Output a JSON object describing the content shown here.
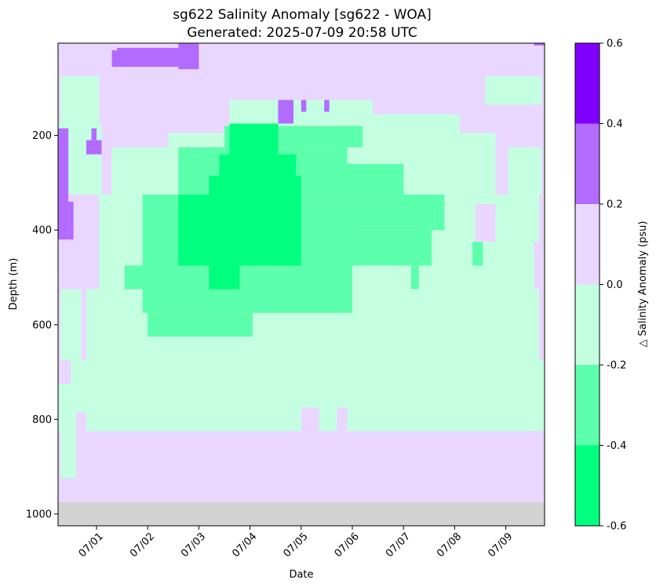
{
  "chart_data": {
    "type": "heatmap",
    "title": "sg622 Salinity Anomaly [sg622 - WOA]",
    "subtitle": "Generated: 2025-07-09 20:58 UTC",
    "xlabel": "Date",
    "ylabel": "Depth (m)",
    "colorbar_label": "△ Salinity Anomaly (psu)",
    "x_ticks": [
      "07/01",
      "07/02",
      "07/03",
      "07/04",
      "07/05",
      "07/06",
      "07/07",
      "07/08",
      "07/09"
    ],
    "x_range_days": [
      -0.75,
      8.75
    ],
    "y_ticks": [
      200,
      400,
      600,
      800,
      1000
    ],
    "ylim": [
      1025,
      0
    ],
    "ylim_top_visible": 5,
    "no_data_below_depth": 975,
    "levels": [
      -0.6,
      -0.4,
      -0.2,
      0.0,
      0.2,
      0.4,
      0.6
    ],
    "colorbar_ticks": [
      "-0.6",
      "-0.4",
      "-0.2",
      "0.0",
      "0.2",
      "0.4",
      "0.6"
    ],
    "band_colors": [
      "#00ff7f",
      "#5cffab",
      "#c5ffe2",
      "#ead7ff",
      "#b36bff",
      "#8000ff"
    ],
    "background_color": "#ead7ff",
    "nodata_color": "#d3d3d3",
    "regions": [
      {
        "level": 2,
        "days": [
          -0.75,
          8.75
        ],
        "depth": [
          675,
          825
        ]
      },
      {
        "level": 2,
        "days": [
          -0.7,
          -0.3
        ],
        "depth": [
          525,
          925
        ]
      },
      {
        "level": 2,
        "days": [
          -0.2,
          8.65
        ],
        "depth": [
          325,
          675
        ]
      },
      {
        "level": 2,
        "days": [
          -0.7,
          0.05
        ],
        "depth": [
          75,
          175
        ]
      },
      {
        "level": 2,
        "days": [
          0.3,
          4.0
        ],
        "depth": [
          225,
          325
        ]
      },
      {
        "level": 2,
        "days": [
          1.4,
          7.8
        ],
        "depth": [
          195,
          325
        ]
      },
      {
        "level": 2,
        "days": [
          2.6,
          5.4
        ],
        "depth": [
          125,
          200
        ]
      },
      {
        "level": 2,
        "days": [
          4.75,
          7.1
        ],
        "depth": [
          155,
          200
        ]
      },
      {
        "level": 2,
        "days": [
          7.6,
          8.7
        ],
        "depth": [
          75,
          135
        ]
      },
      {
        "level": 2,
        "days": [
          8.05,
          8.7
        ],
        "depth": [
          225,
          325
        ]
      },
      {
        "level": 2,
        "days": [
          -0.75,
          0.1
        ],
        "depth": [
          175,
          325
        ]
      },
      {
        "level": 3,
        "days": [
          -0.75,
          -0.5
        ],
        "depth": [
          675,
          725
        ]
      },
      {
        "level": 3,
        "days": [
          -0.2,
          0.05
        ],
        "depth": [
          325,
          525
        ]
      },
      {
        "level": 3,
        "days": [
          7.4,
          7.8
        ],
        "depth": [
          345,
          425
        ]
      },
      {
        "level": 3,
        "days": [
          8.55,
          8.75
        ],
        "depth": [
          425,
          525
        ]
      },
      {
        "level": 3,
        "days": [
          -0.4,
          -0.2
        ],
        "depth": [
          785,
          875
        ]
      },
      {
        "level": 3,
        "days": [
          0.0,
          8.75
        ],
        "depth": [
          825,
          975
        ]
      },
      {
        "level": 3,
        "days": [
          -0.4,
          0.0
        ],
        "depth": [
          875,
          975
        ]
      },
      {
        "level": 3,
        "days": [
          -0.75,
          -0.45
        ],
        "depth": [
          925,
          975
        ]
      },
      {
        "level": 3,
        "days": [
          4.0,
          4.2
        ],
        "depth": [
          775,
          825
        ]
      },
      {
        "level": 3,
        "days": [
          4.2,
          4.35
        ],
        "depth": [
          775,
          825
        ]
      },
      {
        "level": 3,
        "days": [
          4.7,
          4.9
        ],
        "depth": [
          775,
          825
        ]
      },
      {
        "level": 3,
        "days": [
          8.5,
          8.75
        ],
        "depth": [
          825,
          875
        ]
      },
      {
        "level": 1,
        "days": [
          0.9,
          5.0
        ],
        "depth": [
          325,
          575
        ]
      },
      {
        "level": 1,
        "days": [
          1.0,
          3.05
        ],
        "depth": [
          575,
          625
        ]
      },
      {
        "level": 1,
        "days": [
          1.6,
          4.9
        ],
        "depth": [
          225,
          325
        ]
      },
      {
        "level": 1,
        "days": [
          2.5,
          5.2
        ],
        "depth": [
          180,
          225
        ]
      },
      {
        "level": 1,
        "days": [
          4.9,
          6.0
        ],
        "depth": [
          260,
          325
        ]
      },
      {
        "level": 1,
        "days": [
          4.9,
          6.8
        ],
        "depth": [
          325,
          400
        ]
      },
      {
        "level": 1,
        "days": [
          4.9,
          6.55
        ],
        "depth": [
          400,
          475
        ]
      },
      {
        "level": 1,
        "days": [
          0.55,
          4.9
        ],
        "depth": [
          475,
          525
        ]
      },
      {
        "level": 1,
        "days": [
          6.15,
          6.3
        ],
        "depth": [
          475,
          525
        ]
      },
      {
        "level": 1,
        "days": [
          7.35,
          7.55
        ],
        "depth": [
          425,
          475
        ]
      },
      {
        "level": 0,
        "days": [
          1.6,
          4.0
        ],
        "depth": [
          325,
          475
        ]
      },
      {
        "level": 0,
        "days": [
          2.2,
          4.0
        ],
        "depth": [
          285,
          325
        ]
      },
      {
        "level": 0,
        "days": [
          2.4,
          3.9
        ],
        "depth": [
          240,
          285
        ]
      },
      {
        "level": 0,
        "days": [
          2.6,
          3.55
        ],
        "depth": [
          175,
          240
        ]
      },
      {
        "level": 0,
        "days": [
          2.2,
          2.8
        ],
        "depth": [
          475,
          525
        ]
      },
      {
        "level": 4,
        "days": [
          0.4,
          1.7
        ],
        "depth": [
          15,
          55
        ]
      },
      {
        "level": 4,
        "days": [
          1.6,
          2.0
        ],
        "depth": [
          5,
          60
        ]
      },
      {
        "level": 4,
        "days": [
          -0.75,
          -0.55
        ],
        "depth": [
          185,
          420
        ]
      },
      {
        "level": 4,
        "days": [
          -0.55,
          -0.45
        ],
        "depth": [
          340,
          420
        ]
      },
      {
        "level": 4,
        "days": [
          -0.2,
          0.1
        ],
        "depth": [
          210,
          240
        ]
      },
      {
        "level": 4,
        "days": [
          0.3,
          0.6
        ],
        "depth": [
          20,
          55
        ]
      },
      {
        "level": 4,
        "days": [
          3.55,
          3.85
        ],
        "depth": [
          125,
          175
        ]
      },
      {
        "level": 4,
        "days": [
          4.0,
          4.1
        ],
        "depth": [
          125,
          150
        ]
      },
      {
        "level": 4,
        "days": [
          4.45,
          4.55
        ],
        "depth": [
          125,
          150
        ]
      },
      {
        "level": 4,
        "days": [
          -0.1,
          0.0
        ],
        "depth": [
          185,
          210
        ]
      },
      {
        "level": 4,
        "days": [
          8.55,
          8.75
        ],
        "depth": [
          0,
          10
        ]
      }
    ]
  }
}
